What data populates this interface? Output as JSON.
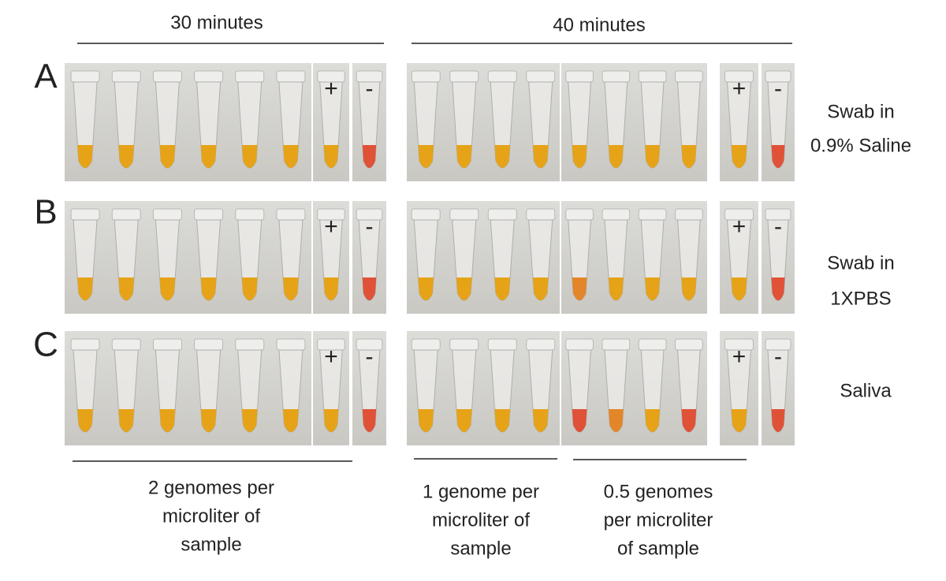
{
  "headers": [
    "30 minutes",
    "40 minutes"
  ],
  "rows": [
    {
      "label": "A",
      "condition": [
        "Swab in",
        "0.9% Saline"
      ]
    },
    {
      "label": "B",
      "condition": [
        "Swab in",
        "1XPBS"
      ]
    },
    {
      "label": "C",
      "condition": [
        "Saliva"
      ]
    }
  ],
  "controls": {
    "positive": "+",
    "negative": "-"
  },
  "footers": [
    [
      "2 genomes per",
      "microliter of",
      "sample"
    ],
    [
      "1 genome per",
      "microliter of",
      "sample"
    ],
    [
      "0.5 genomes",
      "per microliter",
      "of sample"
    ]
  ]
}
